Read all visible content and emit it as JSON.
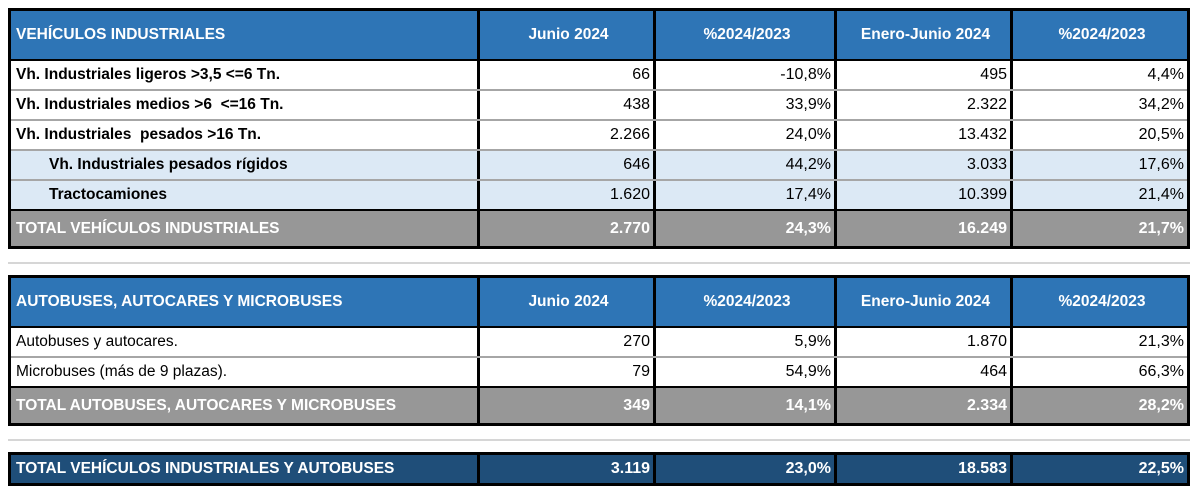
{
  "colors": {
    "header_blue": "#2E75B6",
    "subrow_blue": "#DCE9F5",
    "total_gray": "#979797",
    "grand_blue": "#1F4E79",
    "border_black": "#000000",
    "row_separator_gray": "#A6A6A6",
    "divider_gray": "#D6D6D6"
  },
  "industrial_table": {
    "title": "VEHÍCULOS INDUSTRIALES",
    "columns": [
      "Junio 2024",
      "%2024/2023",
      "Enero-Junio 2024",
      "%2024/2023"
    ],
    "rows": [
      {
        "label": "Vh. Industriales ligeros >3,5 <=6 Tn.",
        "values": [
          "66",
          "-10,8%",
          "495",
          "4,4%"
        ]
      },
      {
        "label": "Vh. Industriales medios >6  <=16 Tn.",
        "values": [
          "438",
          "33,9%",
          "2.322",
          "34,2%"
        ]
      },
      {
        "label": "Vh. Industriales  pesados >16 Tn.",
        "values": [
          "2.266",
          "24,0%",
          "13.432",
          "20,5%"
        ]
      },
      {
        "label": "Vh. Industriales pesados rígidos",
        "values": [
          "646",
          "44,2%",
          "3.033",
          "17,6%"
        ],
        "indent": true
      },
      {
        "label": "Tractocamiones",
        "values": [
          "1.620",
          "17,4%",
          "10.399",
          "21,4%"
        ],
        "indent": true
      }
    ],
    "total": {
      "label": "TOTAL VEHÍCULOS INDUSTRIALES",
      "values": [
        "2.770",
        "24,3%",
        "16.249",
        "21,7%"
      ]
    }
  },
  "bus_table": {
    "title": "AUTOBUSES, AUTOCARES Y MICROBUSES",
    "columns": [
      "Junio 2024",
      "%2024/2023",
      "Enero-Junio 2024",
      "%2024/2023"
    ],
    "rows": [
      {
        "label": "Autobuses y autocares.",
        "values": [
          "270",
          "5,9%",
          "1.870",
          "21,3%"
        ]
      },
      {
        "label": "Microbuses (más de 9 plazas).",
        "values": [
          "79",
          "54,9%",
          "464",
          "66,3%"
        ]
      }
    ],
    "total": {
      "label": "TOTAL AUTOBUSES, AUTOCARES Y MICROBUSES",
      "values": [
        "349",
        "14,1%",
        "2.334",
        "28,2%"
      ]
    }
  },
  "grand_total": {
    "label": "TOTAL VEHÍCULOS INDUSTRIALES Y AUTOBUSES",
    "values": [
      "3.119",
      "23,0%",
      "18.583",
      "22,5%"
    ]
  }
}
